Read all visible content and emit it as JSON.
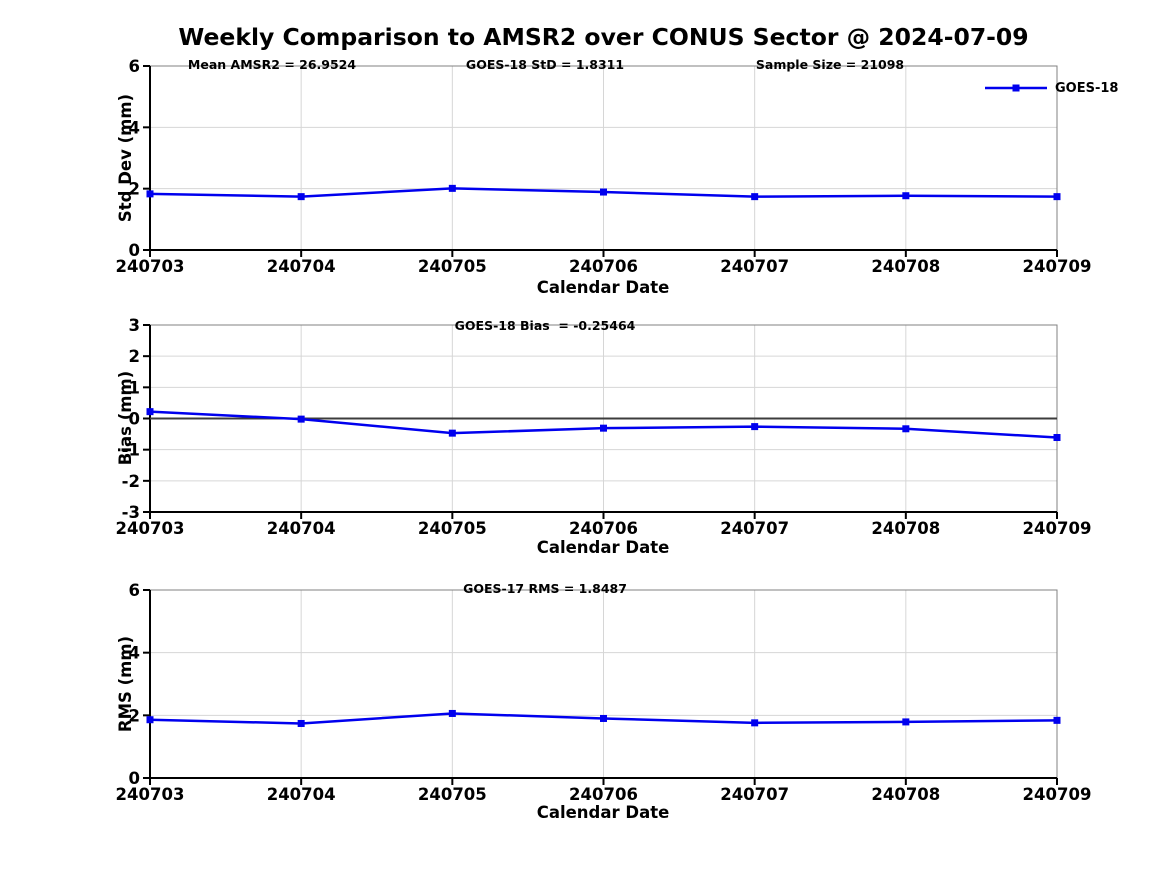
{
  "title": "Weekly Comparison to AMSR2 over CONUS Sector @ 2024-07-09",
  "legend": {
    "label": "GOES-18"
  },
  "colors": {
    "line": "#0000ee",
    "grid": "#d6d6d6",
    "frame": "#808080",
    "axis": "#000000",
    "zero_line": "#3c3c3c",
    "text": "#000000"
  },
  "chart_data": [
    {
      "type": "line",
      "annotations": [
        {
          "text": "Mean AMSR2 = 26.9524"
        },
        {
          "text": "GOES-18 StD = 1.8311"
        },
        {
          "text": "Sample Size = 21098"
        }
      ],
      "categories": [
        "240703",
        "240704",
        "240705",
        "240706",
        "240707",
        "240708",
        "240709"
      ],
      "series": [
        {
          "name": "GOES-18",
          "values": [
            1.83,
            1.74,
            2.01,
            1.89,
            1.74,
            1.77,
            1.74
          ]
        }
      ],
      "xlabel": "Calendar Date",
      "ylabel": "Std Dev (mm)",
      "ylim": [
        0,
        6
      ],
      "yticks": [
        0,
        2,
        4,
        6
      ],
      "grid": true,
      "zero_line": false,
      "legend_position": "top-right"
    },
    {
      "type": "line",
      "annotations": [
        {
          "text": "GOES-18 Bias  = -0.25464"
        }
      ],
      "categories": [
        "240703",
        "240704",
        "240705",
        "240706",
        "240707",
        "240708",
        "240709"
      ],
      "series": [
        {
          "name": "GOES-18",
          "values": [
            0.22,
            -0.02,
            -0.47,
            -0.31,
            -0.26,
            -0.33,
            -0.61
          ]
        }
      ],
      "xlabel": "Calendar Date",
      "ylabel": "Bias (mm)",
      "ylim": [
        -3,
        3
      ],
      "yticks": [
        -3,
        -2,
        -1,
        0,
        1,
        2,
        3
      ],
      "grid": true,
      "zero_line": true,
      "legend_position": "none"
    },
    {
      "type": "line",
      "annotations": [
        {
          "text": "GOES-17 RMS = 1.8487"
        }
      ],
      "categories": [
        "240703",
        "240704",
        "240705",
        "240706",
        "240707",
        "240708",
        "240709"
      ],
      "series": [
        {
          "name": "GOES-18",
          "values": [
            1.86,
            1.74,
            2.06,
            1.9,
            1.76,
            1.79,
            1.84
          ]
        }
      ],
      "xlabel": "Calendar Date",
      "ylabel": "RMS (mm)",
      "ylim": [
        0,
        6
      ],
      "yticks": [
        0,
        2,
        4,
        6
      ],
      "grid": true,
      "zero_line": false,
      "legend_position": "none"
    }
  ]
}
